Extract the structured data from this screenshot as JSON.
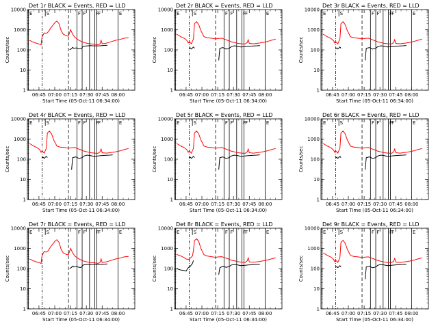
{
  "figure": {
    "panels": [
      {
        "title": "Det 1r BLACK = Events, RED = LLD",
        "variant": "a"
      },
      {
        "title": "Det 2r BLACK = Events, RED = LLD",
        "variant": "b"
      },
      {
        "title": "Det 3r BLACK = Events, RED = LLD",
        "variant": "b"
      },
      {
        "title": "Det 4r BLACK = Events, RED = LLD",
        "variant": "b"
      },
      {
        "title": "Det 5r BLACK = Events, RED = LLD",
        "variant": "b"
      },
      {
        "title": "Det 6r BLACK = Events, RED = LLD",
        "variant": "b"
      },
      {
        "title": "Det 7r BLACK = Events, RED = LLD",
        "variant": "a"
      },
      {
        "title": "Det 8r BLACK = Events, RED = LLD",
        "variant": "c"
      },
      {
        "title": "Det 9r BLACK = Events, RED = LLD",
        "variant": "b"
      }
    ],
    "xlabel": "Start Time (05-Oct-11 06:34:00)",
    "ylabel": "Counts/sec",
    "xticks": [
      "06:45",
      "07:00",
      "07:15",
      "07:30",
      "07:45",
      "08:00"
    ],
    "yticks": [
      "1",
      "10",
      "100",
      "1000",
      "10000"
    ],
    "colors": {
      "events": "#000000",
      "lld": "#ff0000",
      "axes": "#000000"
    }
  },
  "chart_data": {
    "type": "line",
    "layout": "3x3 grid of identical-axis panels",
    "x_axis": {
      "label": "Start Time (05-Oct-11 06:34:00)",
      "range": [
        "06:34",
        "08:16"
      ],
      "ticks": [
        "06:45",
        "07:00",
        "07:15",
        "07:30",
        "07:45",
        "08:00"
      ]
    },
    "y_axis": {
      "label": "Counts/sec",
      "scale": "log",
      "range": [
        1,
        10000
      ],
      "ticks": [
        1,
        10,
        100,
        1000,
        10000
      ]
    },
    "markers": [
      {
        "time": "06:35",
        "label": "E",
        "style": "vline"
      },
      {
        "time": "06:48",
        "label": "",
        "style": "dash-dot"
      },
      {
        "time": "06:51",
        "label": "S",
        "style": "top-only"
      },
      {
        "time": "07:13",
        "label": "",
        "style": "dashed"
      },
      {
        "time": "07:21",
        "label": "F",
        "style": "vline"
      },
      {
        "time": "07:26",
        "label": "F",
        "style": "vline"
      },
      {
        "time": "07:33",
        "label": "",
        "style": "vline"
      },
      {
        "time": "07:38",
        "label": "F",
        "style": "vline"
      },
      {
        "time": "07:40",
        "label": "F",
        "style": "vline"
      },
      {
        "time": "08:00",
        "label": "E",
        "style": "vline"
      }
    ],
    "variants": {
      "a": {
        "events": [
          [
            "07:13",
            null
          ],
          [
            "07:14",
            100
          ],
          [
            "07:16",
            115
          ],
          [
            "07:17",
            135
          ],
          [
            "07:18",
            120
          ],
          [
            "07:20",
            125
          ],
          [
            "07:22",
            122
          ],
          [
            "07:23",
            115
          ],
          [
            "07:25",
            113
          ],
          [
            "07:27",
            150
          ],
          [
            "07:29",
            155
          ],
          [
            "07:31",
            158
          ],
          [
            "07:34",
            162
          ],
          [
            "07:36",
            160
          ],
          [
            "07:40",
            158
          ],
          [
            "07:43",
            160
          ],
          [
            "07:46",
            165
          ],
          [
            "07:50",
            170
          ]
        ],
        "lld": [
          [
            "06:36",
            300
          ],
          [
            "06:39",
            250
          ],
          [
            "06:43",
            210
          ],
          [
            "06:46",
            190
          ],
          [
            "06:47",
            180
          ],
          [
            "06:48",
            450
          ],
          [
            "06:50",
            700
          ],
          [
            "06:52",
            650
          ],
          [
            "06:54",
            800
          ],
          [
            "06:56",
            1200
          ],
          [
            "06:58",
            1600
          ],
          [
            "07:00",
            2200
          ],
          [
            "07:02",
            2700
          ],
          [
            "07:04",
            2000
          ],
          [
            "07:06",
            900
          ],
          [
            "07:08",
            600
          ],
          [
            "07:11",
            500
          ],
          [
            "07:13",
            480
          ],
          [
            "07:15",
            1000
          ],
          [
            "07:17",
            600
          ],
          [
            "07:19",
            420
          ],
          [
            "07:21",
            350
          ],
          [
            "07:23",
            300
          ],
          [
            "07:26",
            250
          ],
          [
            "07:28",
            230
          ],
          [
            "07:31",
            210
          ],
          [
            "07:34",
            200
          ],
          [
            "07:38",
            190
          ],
          [
            "07:41",
            180
          ],
          [
            "07:43",
            200
          ],
          [
            "07:44",
            300
          ],
          [
            "07:45",
            200
          ],
          [
            "07:48",
            210
          ],
          [
            "07:51",
            230
          ],
          [
            "07:54",
            260
          ],
          [
            "07:58",
            300
          ],
          [
            "08:02",
            330
          ],
          [
            "08:06",
            380
          ],
          [
            "08:10",
            400
          ]
        ]
      },
      "b": {
        "events": [
          [
            "06:48",
            115
          ],
          [
            "06:49",
            125
          ],
          [
            "06:50",
            110
          ],
          [
            "06:52",
            140
          ],
          [
            "06:53",
            120
          ],
          [
            "06:54",
            null
          ],
          [
            "07:16",
            30
          ],
          [
            "07:17",
            120
          ],
          [
            "07:20",
            130
          ],
          [
            "07:23",
            110
          ],
          [
            "07:26",
            120
          ],
          [
            "07:28",
            145
          ],
          [
            "07:31",
            160
          ],
          [
            "07:34",
            150
          ],
          [
            "07:37",
            140
          ],
          [
            "07:41",
            145
          ],
          [
            "07:44",
            150
          ],
          [
            "07:48",
            155
          ],
          [
            "07:52",
            160
          ],
          [
            "07:55",
            165
          ]
        ],
        "lld": [
          [
            "06:36",
            600
          ],
          [
            "06:40",
            450
          ],
          [
            "06:43",
            380
          ],
          [
            "06:45",
            320
          ],
          [
            "06:46",
            280
          ],
          [
            "06:47",
            220
          ],
          [
            "06:48",
            260
          ],
          [
            "06:50",
            200
          ],
          [
            "06:52",
            350
          ],
          [
            "06:53",
            2000
          ],
          [
            "06:55",
            2500
          ],
          [
            "06:57",
            1800
          ],
          [
            "06:59",
            900
          ],
          [
            "07:02",
            450
          ],
          [
            "07:05",
            400
          ],
          [
            "07:09",
            380
          ],
          [
            "07:13",
            350
          ],
          [
            "07:16",
            370
          ],
          [
            "07:19",
            380
          ],
          [
            "07:22",
            330
          ],
          [
            "07:25",
            290
          ],
          [
            "07:28",
            250
          ],
          [
            "07:31",
            230
          ],
          [
            "07:34",
            210
          ],
          [
            "07:38",
            200
          ],
          [
            "07:41",
            195
          ],
          [
            "07:43",
            230
          ],
          [
            "07:44",
            320
          ],
          [
            "07:45",
            210
          ],
          [
            "07:49",
            200
          ],
          [
            "07:52",
            210
          ],
          [
            "07:55",
            220
          ],
          [
            "07:58",
            235
          ],
          [
            "08:02",
            260
          ],
          [
            "08:06",
            300
          ],
          [
            "08:10",
            340
          ]
        ]
      },
      "c": {
        "events": [
          [
            "06:36",
            100
          ],
          [
            "06:38",
            90
          ],
          [
            "06:40",
            85
          ],
          [
            "06:43",
            80
          ],
          [
            "06:45",
            75
          ],
          [
            "06:47",
            110
          ],
          [
            "06:49",
            130
          ],
          [
            "06:51",
            180
          ],
          [
            "06:52",
            250
          ],
          [
            "06:53",
            null
          ],
          [
            "07:16",
            50
          ],
          [
            "07:17",
            110
          ],
          [
            "07:20",
            130
          ],
          [
            "07:23",
            115
          ],
          [
            "07:26",
            125
          ],
          [
            "07:28",
            150
          ],
          [
            "07:31",
            160
          ],
          [
            "07:34",
            150
          ],
          [
            "07:37",
            140
          ],
          [
            "07:41",
            145
          ],
          [
            "07:44",
            150
          ],
          [
            "07:48",
            155
          ],
          [
            "07:52",
            160
          ],
          [
            "07:55",
            165
          ]
        ],
        "lld": [
          [
            "06:36",
            500
          ],
          [
            "06:40",
            420
          ],
          [
            "06:43",
            350
          ],
          [
            "06:45",
            300
          ],
          [
            "06:47",
            280
          ],
          [
            "06:49",
            330
          ],
          [
            "06:51",
            420
          ],
          [
            "06:52",
            800
          ],
          [
            "06:53",
            2400
          ],
          [
            "06:55",
            3000
          ],
          [
            "06:57",
            2200
          ],
          [
            "06:59",
            1000
          ],
          [
            "07:02",
            480
          ],
          [
            "07:05",
            420
          ],
          [
            "07:09",
            390
          ],
          [
            "07:13",
            360
          ],
          [
            "07:16",
            380
          ],
          [
            "07:19",
            390
          ],
          [
            "07:22",
            340
          ],
          [
            "07:25",
            300
          ],
          [
            "07:28",
            260
          ],
          [
            "07:31",
            240
          ],
          [
            "07:34",
            220
          ],
          [
            "07:38",
            205
          ],
          [
            "07:41",
            200
          ],
          [
            "07:43",
            240
          ],
          [
            "07:44",
            340
          ],
          [
            "07:45",
            215
          ],
          [
            "07:49",
            205
          ],
          [
            "07:52",
            215
          ],
          [
            "07:55",
            225
          ],
          [
            "07:58",
            240
          ],
          [
            "08:02",
            265
          ],
          [
            "08:06",
            300
          ],
          [
            "08:10",
            340
          ]
        ]
      }
    }
  }
}
